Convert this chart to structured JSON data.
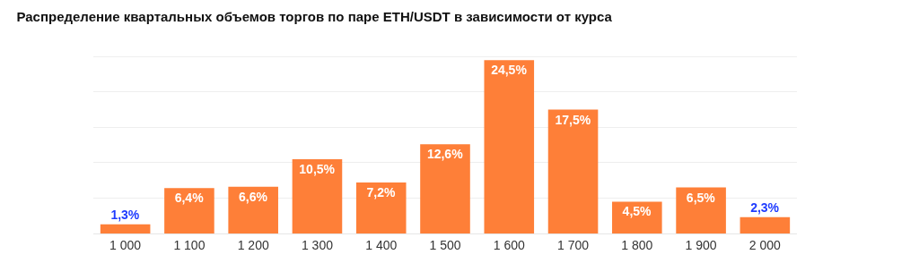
{
  "chart_data": {
    "type": "bar",
    "title": "Распределение квартальных объемов торгов по паре ETH/USDT в зависимости от курса",
    "categories": [
      "1 000",
      "1 100",
      "1 200",
      "1 300",
      "1 400",
      "1 500",
      "1 600",
      "1 700",
      "1 800",
      "1 900",
      "2 000"
    ],
    "values": [
      1.3,
      6.4,
      6.6,
      10.5,
      7.2,
      12.6,
      24.5,
      17.5,
      4.5,
      6.5,
      2.3
    ],
    "value_labels": [
      "1,3%",
      "6,4%",
      "6,6%",
      "10,5%",
      "7,2%",
      "12,6%",
      "24,5%",
      "17,5%",
      "4,5%",
      "6,5%",
      "2,3%"
    ],
    "color": "#fe7f38",
    "grid": "y",
    "tick_labels": "x",
    "legend": false
  }
}
